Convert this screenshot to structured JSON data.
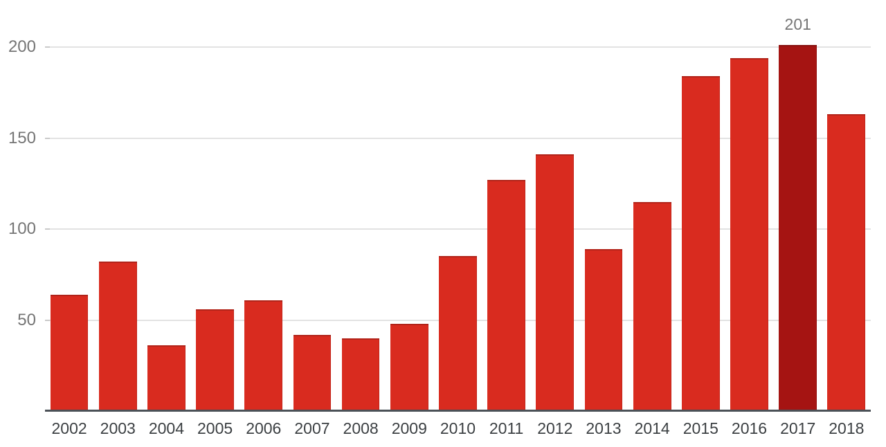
{
  "chart_data": {
    "type": "bar",
    "title": "",
    "xlabel": "",
    "ylabel": "",
    "categories": [
      "2002",
      "2003",
      "2004",
      "2005",
      "2006",
      "2007",
      "2008",
      "2009",
      "2010",
      "2011",
      "2012",
      "2013",
      "2014",
      "2015",
      "2016",
      "2017",
      "2018"
    ],
    "values": [
      64,
      82,
      36,
      56,
      61,
      42,
      40,
      48,
      85,
      127,
      141,
      89,
      115,
      184,
      194,
      201,
      163
    ],
    "y_ticks": [
      50,
      100,
      150,
      200
    ],
    "ylim": [
      0,
      200
    ],
    "grid": true,
    "legend": false,
    "highlight_index": 15,
    "highlight_category": "2017",
    "annotation": {
      "text": "201",
      "category": "2017"
    }
  },
  "colors": {
    "bar": "#d92b1f",
    "bar_highlight": "#a51412",
    "gridline": "#e2e2e2",
    "baseline": "#4b5157",
    "y_label": "#757575",
    "x_label": "#3c4043",
    "annotation": "#757575",
    "background": "#ffffff"
  }
}
